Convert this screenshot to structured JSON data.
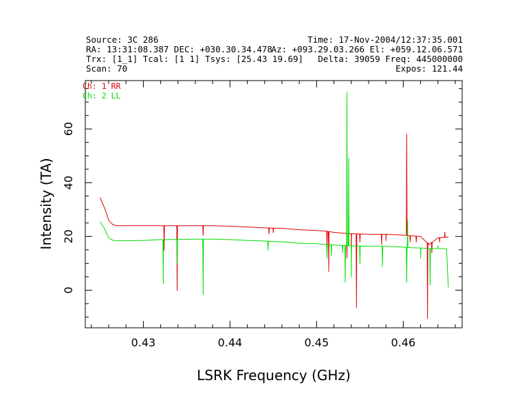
{
  "header": {
    "source": "Source: 3C 286",
    "time": "Time: 17-Nov-2004/12:37:35.001",
    "ra_dec": "RA: 13:31:08.387 DEC: +030.30.34.478",
    "az_el": "Az: +093.29.03.266 El: +059.12.06.571",
    "trx_tcal_tsys": "Trx: [1_1]  Tcal: [1 1]  Tsys: [25.43 19.69]",
    "delta_freq": "Delta: 39059 Freq: 445000000",
    "scan": "Scan: 70",
    "expos": "Expos: 121.44"
  },
  "chart_data": {
    "type": "line",
    "xlabel": "LSRK Frequency (GHz)",
    "ylabel": "Intensity (TA)",
    "xlim": [
      0.4233,
      0.4668
    ],
    "ylim": [
      -14,
      78
    ],
    "xticks": [
      0.43,
      0.44,
      0.45,
      0.46
    ],
    "xtick_labels": [
      "0.43",
      "0.44",
      "0.45",
      "0.46"
    ],
    "yticks": [
      0,
      20,
      40,
      60
    ],
    "ytick_labels": [
      "0",
      "20",
      "40",
      "60"
    ],
    "legend_position": "top-left",
    "series": [
      {
        "name": "Ch: 1 RR",
        "color": "#e00000",
        "x": [
          0.425,
          0.4256,
          0.426,
          0.4265,
          0.427,
          0.428,
          0.43,
          0.432,
          0.434,
          0.436,
          0.438,
          0.44,
          0.442,
          0.444,
          0.446,
          0.448,
          0.45,
          0.451,
          0.452,
          0.454,
          0.456,
          0.458,
          0.46,
          0.461,
          0.462,
          0.463,
          0.464,
          0.4652
        ],
        "y": [
          34.5,
          30.0,
          26.0,
          24.3,
          24.0,
          24.0,
          24.0,
          24.0,
          24.0,
          24.0,
          24.0,
          23.8,
          23.5,
          23.2,
          23.0,
          22.5,
          22.2,
          22.0,
          21.5,
          21.0,
          20.8,
          20.8,
          20.5,
          20.2,
          20.0,
          17.0,
          19.5,
          19.8
        ],
        "spikes": [
          {
            "x": 0.4324,
            "y": 15.0
          },
          {
            "x": 0.4339,
            "y": 0.0
          },
          {
            "x": 0.4369,
            "y": 20.5
          },
          {
            "x": 0.4445,
            "y": 21.0
          },
          {
            "x": 0.445,
            "y": 21.5
          },
          {
            "x": 0.4512,
            "y": 14.0
          },
          {
            "x": 0.4514,
            "y": 7.0
          },
          {
            "x": 0.4535,
            "y": 12.0
          },
          {
            "x": 0.454,
            "y": 15.0
          },
          {
            "x": 0.4546,
            "y": -6.5
          },
          {
            "x": 0.455,
            "y": 18.0
          },
          {
            "x": 0.4575,
            "y": 17.0
          },
          {
            "x": 0.458,
            "y": 18.5
          },
          {
            "x": 0.4604,
            "y": 58.0
          },
          {
            "x": 0.4608,
            "y": 18.0
          },
          {
            "x": 0.4615,
            "y": 18.0
          },
          {
            "x": 0.4628,
            "y": -10.5
          },
          {
            "x": 0.4633,
            "y": 14.0
          },
          {
            "x": 0.4642,
            "y": 18.0
          },
          {
            "x": 0.4648,
            "y": 21.5
          }
        ]
      },
      {
        "name": "Ch: 2 LL",
        "color": "#00dd00",
        "x": [
          0.425,
          0.4255,
          0.426,
          0.4265,
          0.427,
          0.428,
          0.43,
          0.432,
          0.434,
          0.436,
          0.438,
          0.44,
          0.442,
          0.444,
          0.446,
          0.448,
          0.45,
          0.451,
          0.452,
          0.454,
          0.456,
          0.458,
          0.46,
          0.461,
          0.462,
          0.463,
          0.464,
          0.465,
          0.4652
        ],
        "y": [
          25.5,
          23.0,
          19.5,
          18.5,
          18.4,
          18.4,
          18.5,
          18.8,
          18.9,
          19.0,
          19.0,
          18.8,
          18.5,
          18.3,
          18.0,
          17.5,
          17.3,
          17.0,
          16.8,
          16.5,
          16.3,
          16.3,
          16.0,
          15.8,
          15.7,
          15.5,
          15.5,
          15.4,
          1.0
        ],
        "spikes": [
          {
            "x": 0.4323,
            "y": 2.5
          },
          {
            "x": 0.4339,
            "y": 10.0
          },
          {
            "x": 0.4369,
            "y": -1.5
          },
          {
            "x": 0.4444,
            "y": 15.0
          },
          {
            "x": 0.4512,
            "y": 12.0
          },
          {
            "x": 0.4517,
            "y": 13.0
          },
          {
            "x": 0.453,
            "y": 14.0
          },
          {
            "x": 0.4533,
            "y": 3.0
          },
          {
            "x": 0.4535,
            "y": 73.5
          },
          {
            "x": 0.4537,
            "y": 49.0
          },
          {
            "x": 0.454,
            "y": 5.0
          },
          {
            "x": 0.455,
            "y": 10.0
          },
          {
            "x": 0.4576,
            "y": 9.0
          },
          {
            "x": 0.4604,
            "y": 3.0
          },
          {
            "x": 0.4605,
            "y": 26.0
          },
          {
            "x": 0.462,
            "y": 12.0
          },
          {
            "x": 0.4631,
            "y": 2.0
          },
          {
            "x": 0.464,
            "y": 16.5
          }
        ]
      }
    ]
  }
}
